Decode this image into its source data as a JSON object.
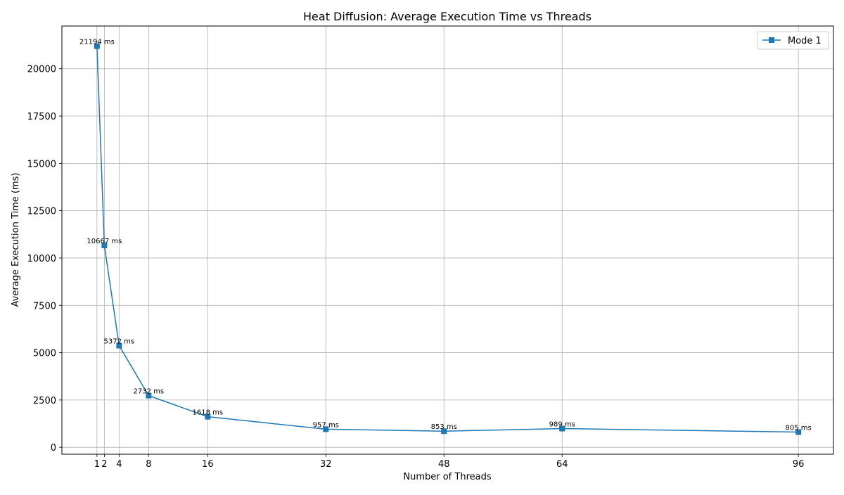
{
  "chart_data": {
    "type": "line",
    "title": "Heat Diffusion: Average Execution Time vs Threads",
    "xlabel": "Number of Threads",
    "ylabel": "Average Execution Time (ms)",
    "xlim": [
      -3.75,
      100.75
    ],
    "ylim": [
      -364.7,
      22255.7
    ],
    "xticks": [
      1,
      2,
      4,
      8,
      16,
      32,
      48,
      64,
      96
    ],
    "yticks": [
      0,
      2500,
      5000,
      7500,
      10000,
      12500,
      15000,
      17500,
      20000
    ],
    "grid": true,
    "legend_position": "top-right",
    "series": [
      {
        "name": "Mode 1",
        "color": "#1f77b4",
        "marker": "square",
        "x": [
          1,
          2,
          4,
          8,
          16,
          32,
          48,
          64,
          96
        ],
        "y": [
          21194,
          10667,
          5372,
          2732,
          1618,
          957,
          853,
          989,
          805
        ],
        "labels": [
          "21194 ms",
          "10667 ms",
          "5372 ms",
          "2732 ms",
          "1618 ms",
          "957 ms",
          "853 ms",
          "989 ms",
          "805 ms"
        ]
      }
    ]
  }
}
